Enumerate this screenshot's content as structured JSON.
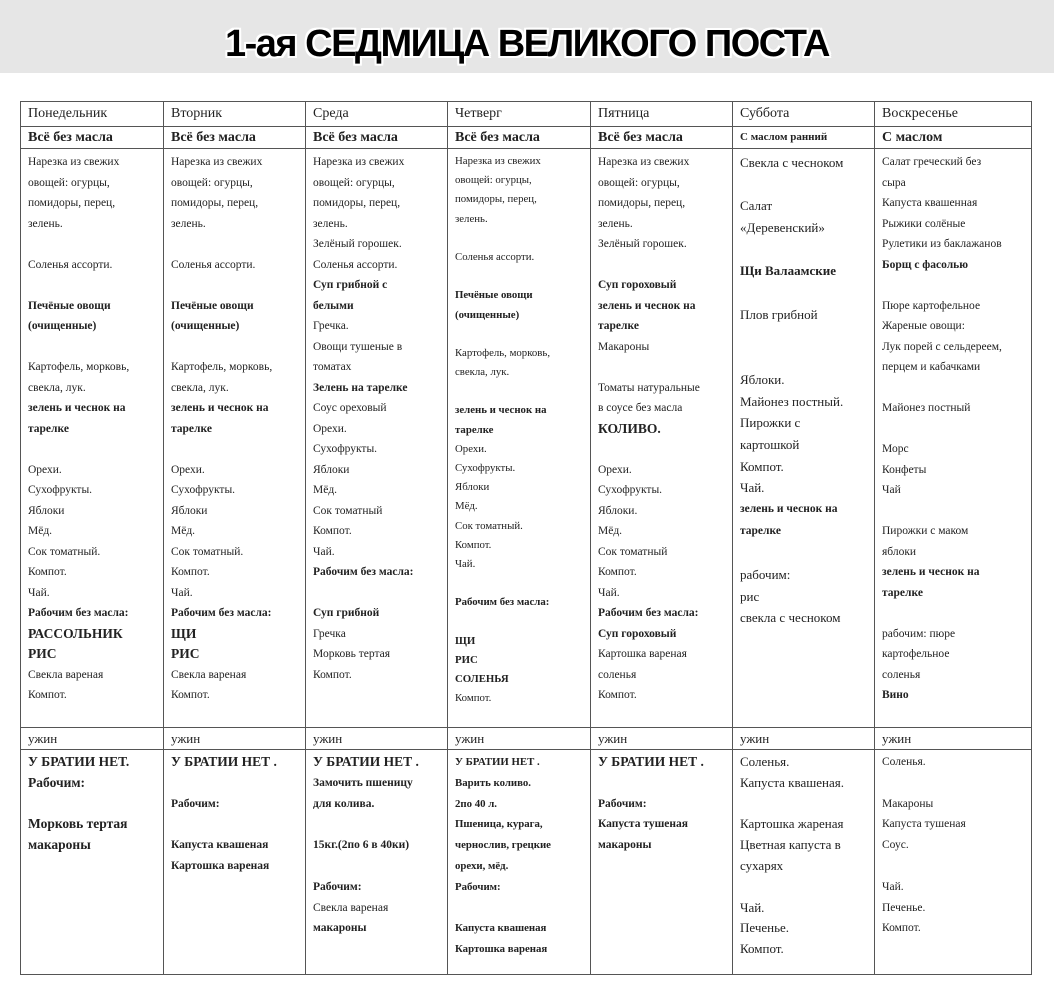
{
  "title": "1-ая СЕДМИЦА ВЕЛИКОГО ПОСТА",
  "days": [
    {
      "name": "Понедельник",
      "rule": "Всё без масла",
      "dinner_label": "ужин",
      "lunch": [
        {
          "t": "Нарезка из свежих"
        },
        {
          "t": "овощей: огурцы,"
        },
        {
          "t": "помидоры, перец,"
        },
        {
          "t": "зелень."
        },
        {
          "t": ""
        },
        {
          "t": "Соленья ассорти."
        },
        {
          "t": ""
        },
        {
          "t": "Печёные овощи",
          "b": true
        },
        {
          "t": "(очищенные)",
          "b": true
        },
        {
          "t": ""
        },
        {
          "t": "Картофель, морковь,"
        },
        {
          "t": "свекла, лук."
        },
        {
          "t": "зелень и чеснок на",
          "b": true
        },
        {
          "t": "тарелке",
          "b": true
        },
        {
          "t": ""
        },
        {
          "t": "Орехи."
        },
        {
          "t": "Сухофрукты."
        },
        {
          "t": "Яблоки"
        },
        {
          "t": "Мёд."
        },
        {
          "t": "Сок томатный."
        },
        {
          "t": "Компот."
        },
        {
          "t": "Чай."
        },
        {
          "t": "Рабочим без масла:",
          "b": true
        },
        {
          "t": "РАССОЛЬНИК",
          "big": true
        },
        {
          "t": "РИС",
          "big": true
        },
        {
          "t": "Свекла вареная"
        },
        {
          "t": "Компот."
        }
      ],
      "dinner": [
        {
          "t": "У БРАТИИ НЕТ.",
          "big": true
        },
        {
          "t": "Рабочим:",
          "big": true
        },
        {
          "t": ""
        },
        {
          "t": "Морковь тертая",
          "big": true
        },
        {
          "t": "макароны",
          "big": true
        }
      ]
    },
    {
      "name": "Вторник",
      "rule": "Всё без масла",
      "dinner_label": "ужин",
      "lunch": [
        {
          "t": "Нарезка из свежих"
        },
        {
          "t": "овощей: огурцы,"
        },
        {
          "t": "помидоры, перец,"
        },
        {
          "t": "зелень."
        },
        {
          "t": ""
        },
        {
          "t": "Соленья ассорти."
        },
        {
          "t": ""
        },
        {
          "t": "Печёные овощи",
          "b": true
        },
        {
          "t": "(очищенные)",
          "b": true
        },
        {
          "t": ""
        },
        {
          "t": "Картофель, морковь,"
        },
        {
          "t": "свекла, лук."
        },
        {
          "t": "зелень и чеснок на",
          "b": true
        },
        {
          "t": "тарелке",
          "b": true
        },
        {
          "t": ""
        },
        {
          "t": "Орехи."
        },
        {
          "t": "Сухофрукты."
        },
        {
          "t": "Яблоки"
        },
        {
          "t": "Мёд."
        },
        {
          "t": "Сок томатный."
        },
        {
          "t": "Компот."
        },
        {
          "t": "Чай."
        },
        {
          "t": "Рабочим без масла:",
          "b": true
        },
        {
          "t": "ЩИ",
          "big": true
        },
        {
          "t": "РИС",
          "big": true
        },
        {
          "t": "Свекла вареная"
        },
        {
          "t": "Компот."
        }
      ],
      "dinner": [
        {
          "t": "У БРАТИИ НЕТ .",
          "big": true
        },
        {
          "t": ""
        },
        {
          "t": "Рабочим:",
          "b": true
        },
        {
          "t": ""
        },
        {
          "t": "Капуста квашеная",
          "b": true
        },
        {
          "t": "Картошка вареная",
          "b": true
        }
      ]
    },
    {
      "name": "Среда",
      "rule": "Всё без масла",
      "dinner_label": "ужин",
      "lunch": [
        {
          "t": "Нарезка из свежих"
        },
        {
          "t": "овощей: огурцы,"
        },
        {
          "t": "помидоры, перец,"
        },
        {
          "t": "зелень."
        },
        {
          "t": "Зелёный горошек."
        },
        {
          "t": "Соленья ассорти."
        },
        {
          "t": "Суп грибной с",
          "b": true
        },
        {
          "t": "белыми",
          "b": true
        },
        {
          "t": "Гречка."
        },
        {
          "t": "Овощи тушеные в"
        },
        {
          "t": "томатах"
        },
        {
          "t": "Зелень на тарелке",
          "b": true
        },
        {
          "t": "Соус ореховый"
        },
        {
          "t": "Орехи."
        },
        {
          "t": "Сухофрукты."
        },
        {
          "t": "Яблоки"
        },
        {
          "t": "Мёд."
        },
        {
          "t": "Сок томатный"
        },
        {
          "t": "Компот."
        },
        {
          "t": "Чай."
        },
        {
          "t": "Рабочим без масла:",
          "b": true
        },
        {
          "t": ""
        },
        {
          "t": "Суп грибной",
          "b": true
        },
        {
          "t": "Гречка"
        },
        {
          "t": "Морковь тертая"
        },
        {
          "t": "Компот."
        }
      ],
      "dinner": [
        {
          "t": "У БРАТИИ НЕТ .",
          "big": true
        },
        {
          "t": "Замочить пшеницу",
          "b": true
        },
        {
          "t": "для колива.",
          "b": true
        },
        {
          "t": ""
        },
        {
          "t": "15кг.(2по 6 в 40ки)",
          "b": true
        },
        {
          "t": ""
        },
        {
          "t": "Рабочим:",
          "b": true
        },
        {
          "t": "Свекла вареная"
        },
        {
          "t": "макароны",
          "b": true
        }
      ]
    },
    {
      "name": "Четверг",
      "rule": "Всё без масла",
      "dinner_label": "ужин",
      "lunch": [
        {
          "t": "Нарезка из свежих"
        },
        {
          "t": "овощей: огурцы,"
        },
        {
          "t": "помидоры, перец,"
        },
        {
          "t": "зелень."
        },
        {
          "t": ""
        },
        {
          "t": "Соленья ассорти."
        },
        {
          "t": ""
        },
        {
          "t": "Печёные овощи",
          "b": true
        },
        {
          "t": "(очищенные)",
          "b": true
        },
        {
          "t": ""
        },
        {
          "t": "Картофель, морковь,"
        },
        {
          "t": "свекла, лук."
        },
        {
          "t": ""
        },
        {
          "t": "зелень и чеснок на",
          "b": true
        },
        {
          "t": "тарелке",
          "b": true
        },
        {
          "t": "Орехи."
        },
        {
          "t": "Сухофрукты."
        },
        {
          "t": "Яблоки"
        },
        {
          "t": "Мёд."
        },
        {
          "t": "Сок томатный."
        },
        {
          "t": "Компот."
        },
        {
          "t": "Чай."
        },
        {
          "t": ""
        },
        {
          "t": "Рабочим без масла:",
          "b": true
        },
        {
          "t": ""
        },
        {
          "t": "ЩИ",
          "big": true
        },
        {
          "t": "РИС",
          "big": true
        },
        {
          "t": "СОЛЕНЬЯ",
          "big": true
        },
        {
          "t": "Компот."
        }
      ],
      "dinner": [
        {
          "t": "У БРАТИИ НЕТ .",
          "big": true
        },
        {
          "t": "Варить коливо.",
          "b": true
        },
        {
          "t": "2по 40 л.",
          "b": true
        },
        {
          "t": "Пшеница, курага,",
          "b": true
        },
        {
          "t": "чернослив, грецкие",
          "b": true
        },
        {
          "t": "орехи, мёд.",
          "b": true
        },
        {
          "t": "Рабочим:",
          "b": true
        },
        {
          "t": ""
        },
        {
          "t": "Капуста квашеная",
          "b": true
        },
        {
          "t": "Картошка вареная",
          "b": true
        }
      ]
    },
    {
      "name": "Пятница",
      "rule": "Всё без масла",
      "dinner_label": "ужин",
      "lunch": [
        {
          "t": "Нарезка из свежих"
        },
        {
          "t": "овощей: огурцы,"
        },
        {
          "t": "помидоры, перец,"
        },
        {
          "t": "зелень."
        },
        {
          "t": "Зелёный горошек."
        },
        {
          "t": ""
        },
        {
          "t": "Суп гороховый",
          "b": true
        },
        {
          "t": "зелень и чеснок на",
          "b": true
        },
        {
          "t": "тарелке",
          "b": true
        },
        {
          "t": "Макароны"
        },
        {
          "t": ""
        },
        {
          "t": "Томаты натуральные"
        },
        {
          "t": "в соусе без масла"
        },
        {
          "t": "КОЛИВО.",
          "big": true
        },
        {
          "t": ""
        },
        {
          "t": "Орехи."
        },
        {
          "t": "Сухофрукты."
        },
        {
          "t": "Яблоки."
        },
        {
          "t": "Мёд."
        },
        {
          "t": "Сок томатный"
        },
        {
          "t": "Компот."
        },
        {
          "t": "Чай."
        },
        {
          "t": "Рабочим без масла:",
          "b": true
        },
        {
          "t": "Суп гороховый",
          "b": true
        },
        {
          "t": "Картошка вареная"
        },
        {
          "t": "соленья"
        },
        {
          "t": "Компот."
        }
      ],
      "dinner": [
        {
          "t": "У БРАТИИ НЕТ .",
          "big": true
        },
        {
          "t": ""
        },
        {
          "t": "Рабочим:",
          "b": true
        },
        {
          "t": "Капуста тушеная",
          "b": true
        },
        {
          "t": "макароны",
          "b": true
        }
      ]
    },
    {
      "name": "Суббота",
      "rule": "С маслом ранний",
      "dinner_label": "ужин",
      "lunch": [
        {
          "t": "Свекла с чесноком"
        },
        {
          "t": ""
        },
        {
          "t": "Салат"
        },
        {
          "t": "«Деревенский»"
        },
        {
          "t": ""
        },
        {
          "t": "Щи Валаамские",
          "b": true
        },
        {
          "t": ""
        },
        {
          "t": "Плов грибной"
        },
        {
          "t": ""
        },
        {
          "t": ""
        },
        {
          "t": "Яблоки."
        },
        {
          "t": "Майонез постный."
        },
        {
          "t": "Пирожки с"
        },
        {
          "t": "картошкой"
        },
        {
          "t": "Компот."
        },
        {
          "t": "Чай."
        },
        {
          "t": "зелень и чеснок на",
          "b": true,
          "sm": true
        },
        {
          "t": "тарелке",
          "b": true,
          "sm": true
        },
        {
          "t": ""
        },
        {
          "t": "рабочим:"
        },
        {
          "t": "рис"
        },
        {
          "t": "свекла с чесноком"
        }
      ],
      "dinner": [
        {
          "t": "Соленья."
        },
        {
          "t": "Капуста квашеная."
        },
        {
          "t": ""
        },
        {
          "t": "Картошка жареная"
        },
        {
          "t": "Цветная капуста в"
        },
        {
          "t": "сухарях"
        },
        {
          "t": ""
        },
        {
          "t": "Чай."
        },
        {
          "t": "Печенье."
        },
        {
          "t": "Компот."
        }
      ]
    },
    {
      "name": "Воскресенье",
      "rule": "С маслом",
      "dinner_label": "ужин",
      "lunch": [
        {
          "t": "Салат греческий без"
        },
        {
          "t": "сыра"
        },
        {
          "t": "Капуста квашенная"
        },
        {
          "t": "Рыжики солёные"
        },
        {
          "t": "Рулетики из баклажанов"
        },
        {
          "t": "Борщ с фасолью",
          "b": true
        },
        {
          "t": ""
        },
        {
          "t": "Пюре картофельное"
        },
        {
          "t": "Жареные овощи:"
        },
        {
          "t": "Лук порей с сельдереем,"
        },
        {
          "t": "перцем и кабачками"
        },
        {
          "t": ""
        },
        {
          "t": "Майонез постный"
        },
        {
          "t": ""
        },
        {
          "t": "Морс"
        },
        {
          "t": "Конфеты"
        },
        {
          "t": "Чай"
        },
        {
          "t": ""
        },
        {
          "t": "Пирожки с маком"
        },
        {
          "t": "яблоки"
        },
        {
          "t": "зелень и чеснок на",
          "b": true
        },
        {
          "t": "тарелке",
          "b": true
        },
        {
          "t": ""
        },
        {
          "t": "рабочим: пюре"
        },
        {
          "t": "картофельное"
        },
        {
          "t": "соленья"
        },
        {
          "t": "Вино",
          "b": true
        }
      ],
      "dinner": [
        {
          "t": "Соленья."
        },
        {
          "t": ""
        },
        {
          "t": "Макароны"
        },
        {
          "t": "Капуста тушеная"
        },
        {
          "t": "Соус."
        },
        {
          "t": ""
        },
        {
          "t": "Чай."
        },
        {
          "t": "Печенье."
        },
        {
          "t": "Компот."
        }
      ]
    }
  ]
}
